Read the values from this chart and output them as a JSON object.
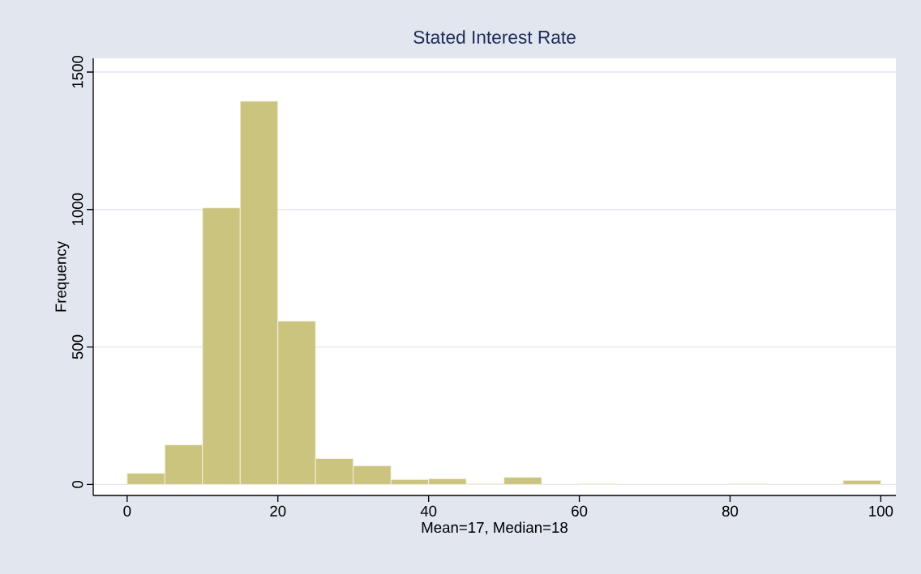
{
  "chart_data": {
    "type": "histogram",
    "title": "Stated Interest Rate",
    "xlabel": "Mean=17, Median=18",
    "ylabel": "Frequency",
    "bins": [
      0,
      5,
      10,
      15,
      20,
      25,
      30,
      35,
      40,
      45,
      50,
      55,
      60,
      65,
      70,
      75,
      80,
      85,
      90,
      95,
      100
    ],
    "values": [
      41,
      144,
      1006,
      1394,
      594,
      94,
      68,
      18,
      21,
      3,
      26,
      0,
      3,
      0,
      0,
      0,
      3,
      0,
      0,
      15
    ],
    "color": "#cbc47f",
    "xlim": [
      -4.5,
      102
    ],
    "ylim": [
      -40,
      1550
    ],
    "xticks": [
      0,
      20,
      40,
      60,
      80,
      100
    ],
    "yticks": [
      0,
      500,
      1000,
      1500
    ],
    "grid": "y"
  }
}
